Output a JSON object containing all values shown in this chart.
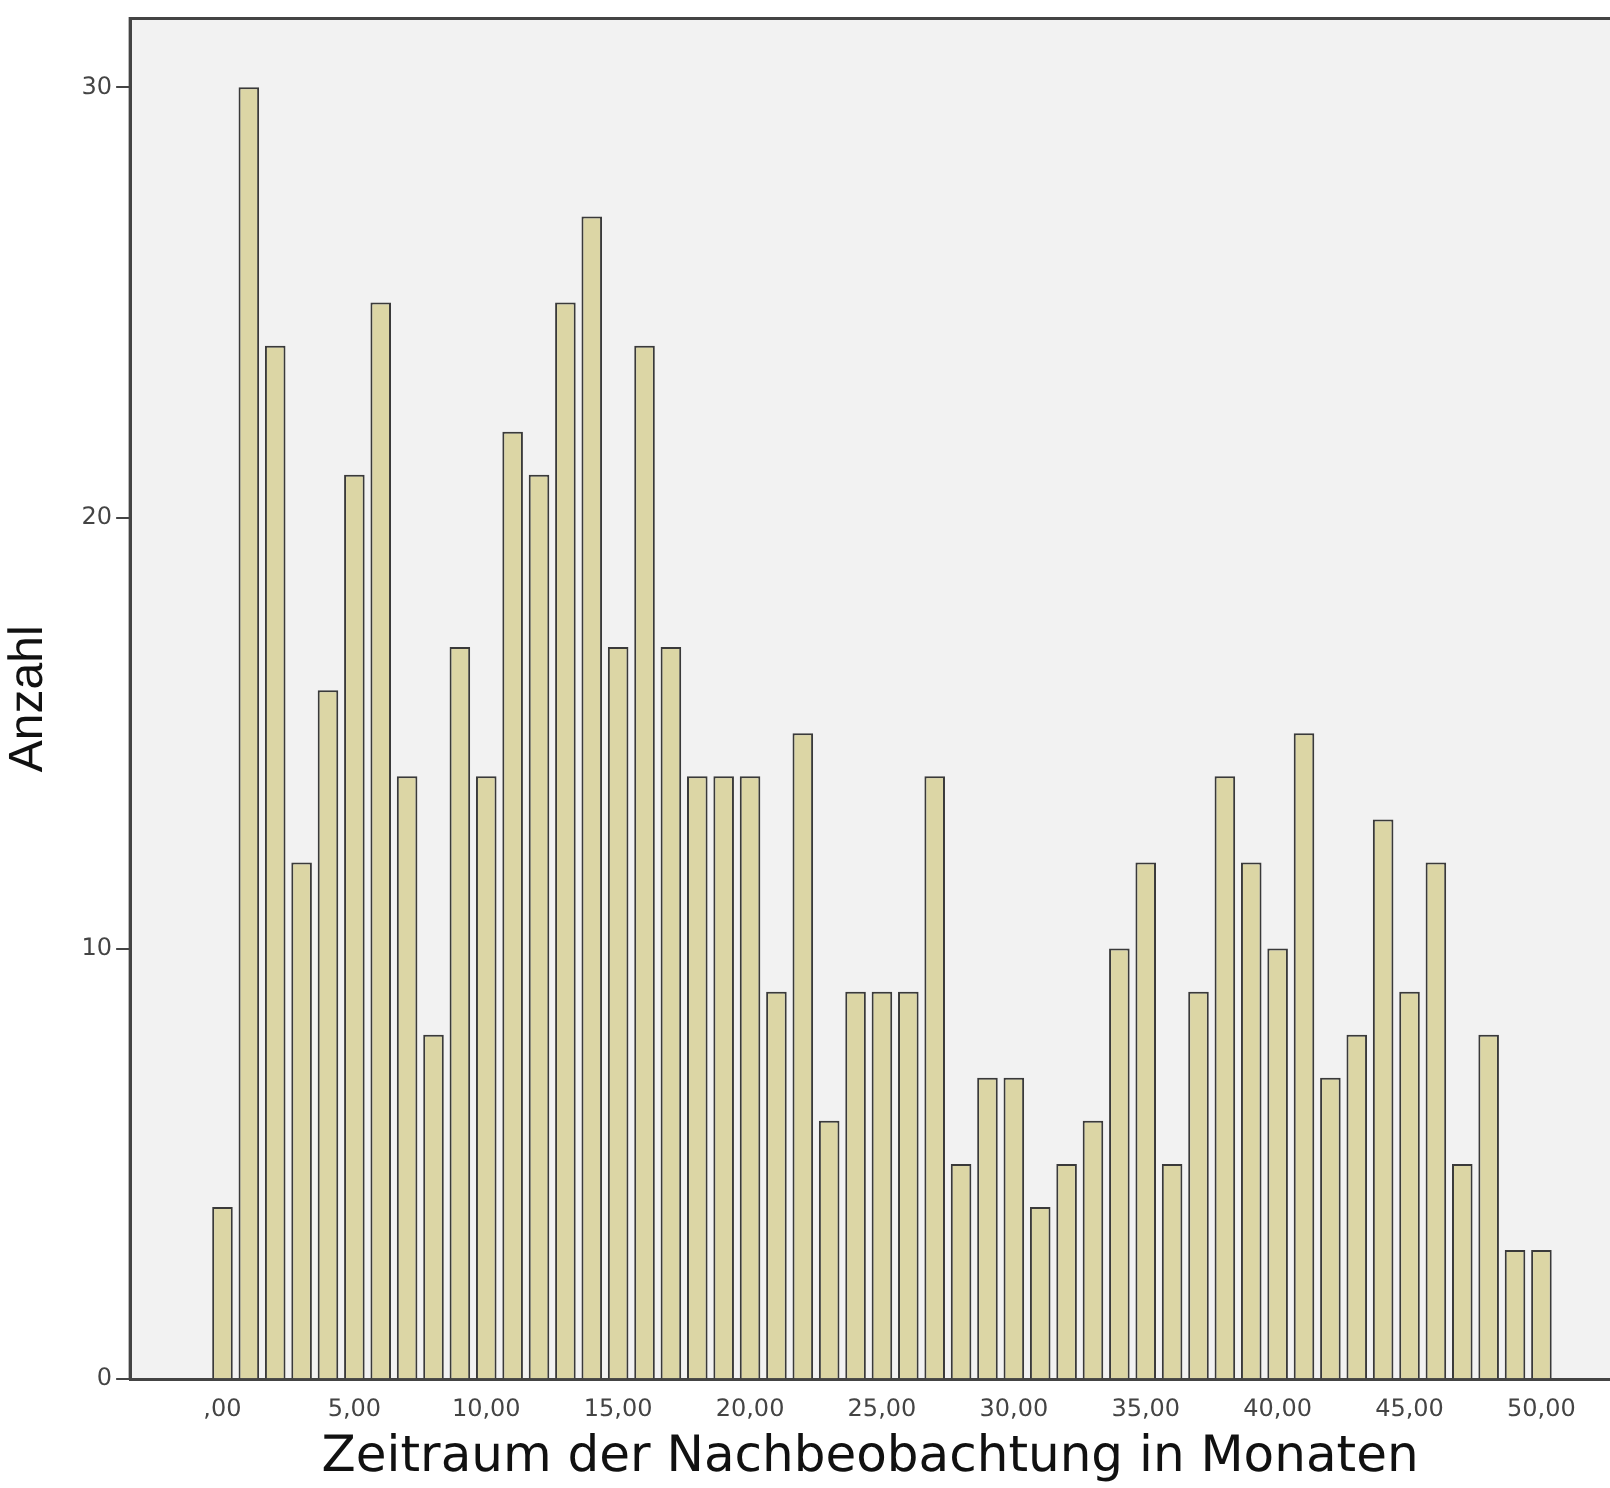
{
  "chart_data": {
    "type": "histogram",
    "xlabel": "Zeitraum der Nachbeobachtung in Monaten",
    "ylabel": "Anzahl",
    "bins": [
      -0.5,
      0.5,
      1.5,
      2.5,
      3.5,
      4.5,
      5.5,
      6.5,
      7.5,
      8.5,
      9.5,
      10.5,
      11.5,
      12.5,
      13.5,
      14.5,
      15.5,
      16.5,
      17.5,
      18.5,
      19.5,
      20.5,
      21.5,
      22.5,
      23.5,
      24.5,
      25.5,
      26.5,
      27.5,
      28.5,
      29.5,
      30.5,
      31.5,
      32.5,
      33.5,
      34.5,
      35.5,
      36.5,
      37.5,
      38.5,
      39.5,
      40.5,
      41.5,
      42.5,
      43.5,
      44.5,
      45.5,
      46.5,
      47.5,
      48.5,
      49.5,
      50.5
    ],
    "values": [
      4,
      30,
      24,
      12,
      16,
      21,
      25,
      14,
      8,
      17,
      14,
      22,
      21,
      25,
      27,
      17,
      24,
      17,
      14,
      14,
      14,
      9,
      15,
      6,
      9,
      9,
      9,
      14,
      5,
      7,
      7,
      4,
      5,
      6,
      10,
      12,
      5,
      9,
      14,
      12,
      10,
      15,
      7,
      8,
      13,
      9,
      12,
      5,
      8,
      3,
      3
    ],
    "color": "#dcd6a5",
    "xlim": [
      -3.5,
      52.6
    ],
    "ylim": [
      0,
      31.6
    ],
    "xticks": [
      {
        "value": 0,
        "label": ",00"
      },
      {
        "value": 5,
        "label": "5,00"
      },
      {
        "value": 10,
        "label": "10,00"
      },
      {
        "value": 15,
        "label": "15,00"
      },
      {
        "value": 20,
        "label": "20,00"
      },
      {
        "value": 25,
        "label": "25,00"
      },
      {
        "value": 30,
        "label": "30,00"
      },
      {
        "value": 35,
        "label": "35,00"
      },
      {
        "value": 40,
        "label": "40,00"
      },
      {
        "value": 45,
        "label": "45,00"
      },
      {
        "value": 50,
        "label": "50,00"
      }
    ],
    "yticks": [
      0,
      10,
      20,
      30
    ],
    "grid": false,
    "legend": false
  }
}
